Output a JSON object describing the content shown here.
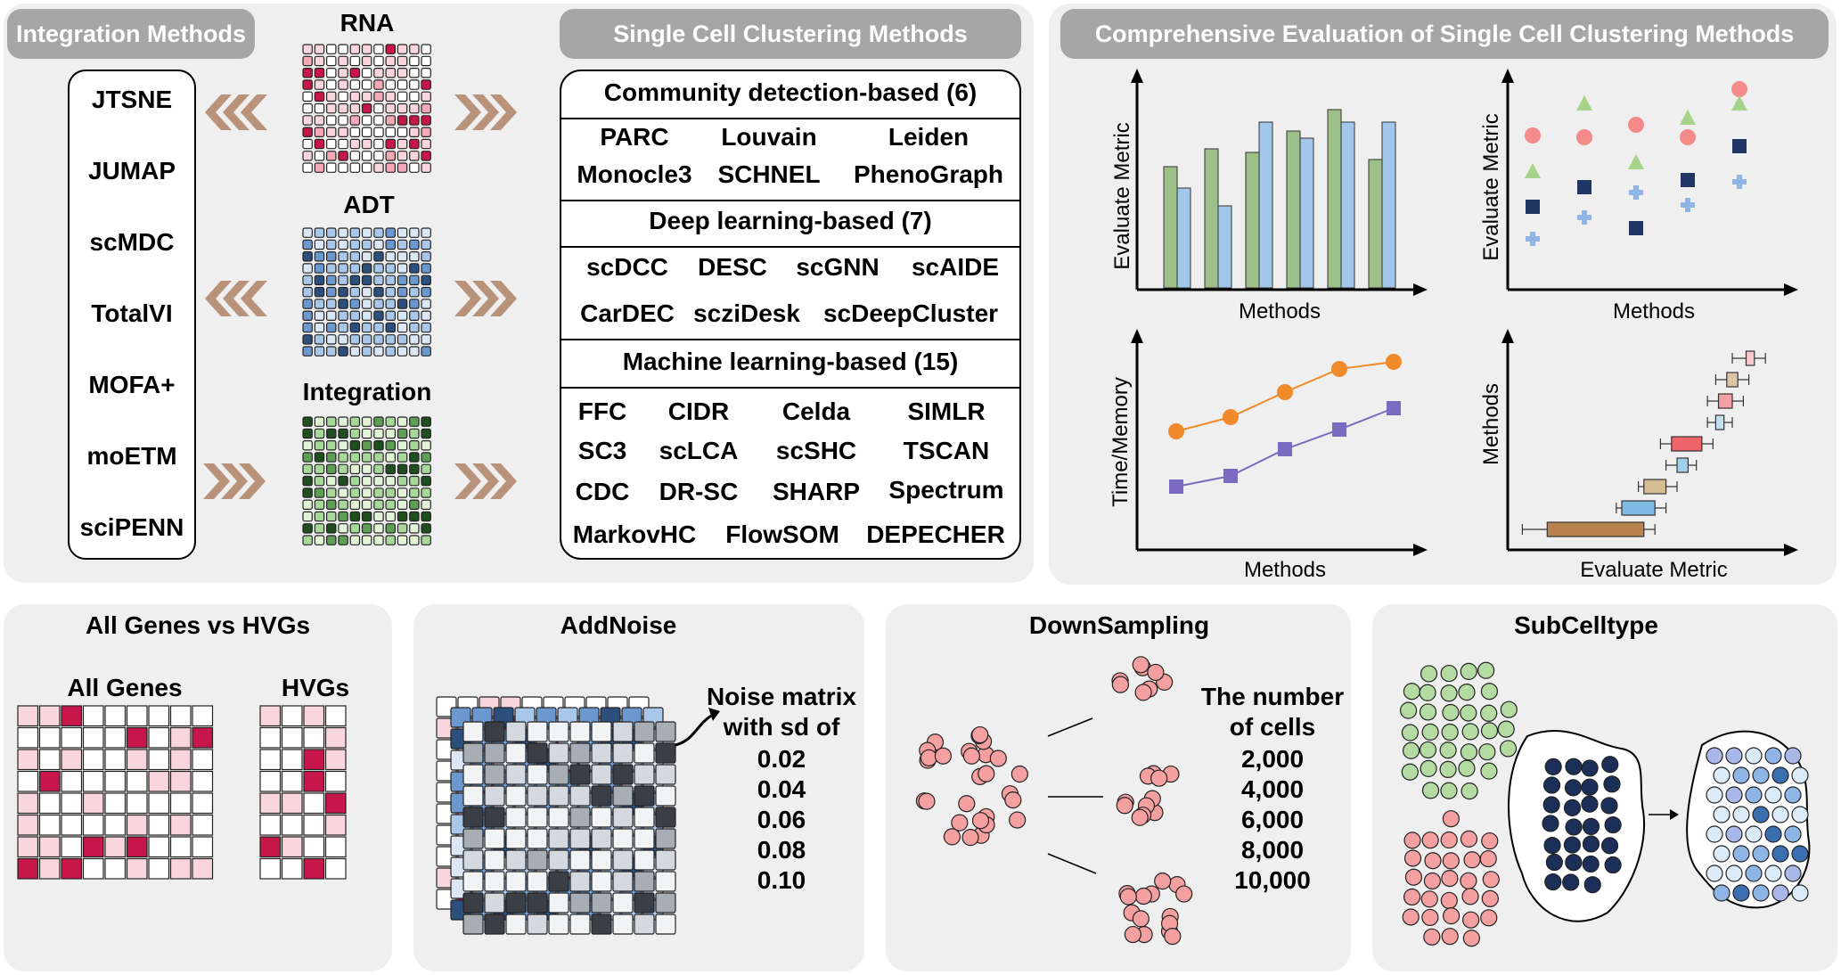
{
  "colors": {
    "panel_bg": "#efefef",
    "pill_bg": "#a6a6a6",
    "chevron": "#b8937a",
    "rna": [
      "#ffffff",
      "#f9d6dd",
      "#f4a8b8",
      "#c6164a"
    ],
    "adt": [
      "#dce7f5",
      "#a9c7e8",
      "#6b98cf",
      "#2c4f7c"
    ],
    "integration": [
      "#e2f3d8",
      "#a8d899",
      "#5e9e55",
      "#1f4f1f"
    ],
    "gray": [
      "#f2f3f5",
      "#d4d9df",
      "#a8aeb6",
      "#3b3e44"
    ],
    "bar_green": "#9dbf8a",
    "bar_blue": "#a3c7ea",
    "scatter_pink": "#f48a8a",
    "scatter_green": "#a6d48a",
    "scatter_navy": "#1f3564",
    "scatter_lblue": "#8fb4e6",
    "line_orange": "#f08a2a",
    "line_purple": "#7b6bc0",
    "cell_pink": "#f4a0a0",
    "cell_green": "#b4dca2",
    "cell_navy": "#1b2f59",
    "cell_light": "#dcebf8"
  },
  "integration_methods": {
    "title": "Integration Methods",
    "items": [
      "JTSNE",
      "JUMAP",
      "scMDC",
      "TotalVI",
      "MOFA+",
      "moETM",
      "sciPENN"
    ]
  },
  "matrices": {
    "rna_label": "RNA",
    "adt_label": "ADT",
    "integration_label": "Integration"
  },
  "clustering_methods": {
    "title": "Single Cell Clustering Methods",
    "community": {
      "header": "Community detection-based (6)",
      "rows": [
        [
          "PARC",
          "Louvain",
          "Leiden"
        ],
        [
          "Monocle3",
          "SCHNEL",
          "PhenoGraph"
        ]
      ]
    },
    "deep": {
      "header": "Deep learning-based (7)",
      "rows": [
        [
          "scDCC",
          "DESC",
          "scGNN",
          "scAIDE"
        ],
        [
          "CarDEC",
          "scziDesk",
          "scDeepCluster"
        ]
      ]
    },
    "machine": {
      "header": "Machine learning-based (15)",
      "rows": [
        [
          "FFC",
          "CIDR",
          "Celda",
          "SIMLR"
        ],
        [
          "SC3",
          "scLCA",
          "scSHC",
          "TSCAN"
        ],
        [
          "CDC",
          "DR-SC",
          "SHARP",
          "Spectrum"
        ],
        [
          "MarkovHC",
          "FlowSOM",
          "DEPECHER"
        ]
      ]
    }
  },
  "evaluation": {
    "title": "Comprehensive Evaluation of Single Cell Clustering Methods",
    "bar": {
      "ylabel": "Evaluate Metric",
      "xlabel": "Methods",
      "pairs": [
        [
          0.68,
          0.56
        ],
        [
          0.78,
          0.46
        ],
        [
          0.76,
          0.93
        ],
        [
          0.88,
          0.84
        ],
        [
          1.0,
          0.93
        ],
        [
          0.72,
          0.93
        ]
      ]
    },
    "scatter": {
      "ylabel": "Evaluate Metric",
      "xlabel": "Methods",
      "series": [
        {
          "marker": "circle",
          "values": [
            0.74,
            0.73,
            0.8,
            0.73,
            1.0
          ]
        },
        {
          "marker": "triangle",
          "values": [
            0.54,
            0.92,
            0.59,
            0.84,
            0.92
          ]
        },
        {
          "marker": "square",
          "values": [
            0.34,
            0.45,
            0.22,
            0.49,
            0.68
          ]
        },
        {
          "marker": "plus",
          "values": [
            0.16,
            0.28,
            0.42,
            0.35,
            0.48
          ]
        }
      ]
    },
    "line": {
      "ylabel": "Time/Memory",
      "xlabel": "Methods",
      "series": [
        {
          "marker": "circle",
          "values": [
            0.58,
            0.66,
            0.8,
            0.93,
            0.97
          ]
        },
        {
          "marker": "square",
          "values": [
            0.27,
            0.33,
            0.48,
            0.59,
            0.71
          ]
        }
      ]
    },
    "box": {
      "ylabel": "Methods",
      "xlabel": "Evaluate Metric",
      "boxes": [
        {
          "lo": 0.8,
          "q1": 0.85,
          "q3": 0.88,
          "hi": 0.92,
          "color": "#f8c8cc"
        },
        {
          "lo": 0.74,
          "q1": 0.78,
          "q3": 0.82,
          "hi": 0.86,
          "color": "#dcc6a5"
        },
        {
          "lo": 0.71,
          "q1": 0.75,
          "q3": 0.8,
          "hi": 0.84,
          "color": "#f4a0a6"
        },
        {
          "lo": 0.71,
          "q1": 0.74,
          "q3": 0.77,
          "hi": 0.8,
          "color": "#bfe0ec"
        },
        {
          "lo": 0.54,
          "q1": 0.58,
          "q3": 0.69,
          "hi": 0.73,
          "color": "#ee6468"
        },
        {
          "lo": 0.56,
          "q1": 0.6,
          "q3": 0.64,
          "hi": 0.67,
          "color": "#9fd0ea"
        },
        {
          "lo": 0.46,
          "q1": 0.48,
          "q3": 0.56,
          "hi": 0.6,
          "color": "#d6bc93"
        },
        {
          "lo": 0.38,
          "q1": 0.4,
          "q3": 0.52,
          "hi": 0.56,
          "color": "#7fb9e6"
        },
        {
          "lo": 0.04,
          "q1": 0.13,
          "q3": 0.48,
          "hi": 0.52,
          "color": "#b9814e"
        }
      ]
    }
  },
  "bottom": {
    "genes": {
      "title": "All Genes vs HVGs",
      "all_label": "All Genes",
      "hvg_label": "HVGs"
    },
    "noise": {
      "title": "AddNoise",
      "note_lines": [
        "Noise matrix",
        "with sd of"
      ],
      "values": [
        "0.02",
        "0.04",
        "0.06",
        "0.08",
        "0.10"
      ]
    },
    "down": {
      "title": "DownSampling",
      "note_lines": [
        "The number",
        "of cells"
      ],
      "values": [
        "2,000",
        "4,000",
        "6,000",
        "8,000",
        "10,000"
      ]
    },
    "sub": {
      "title": "SubCelltype"
    }
  }
}
